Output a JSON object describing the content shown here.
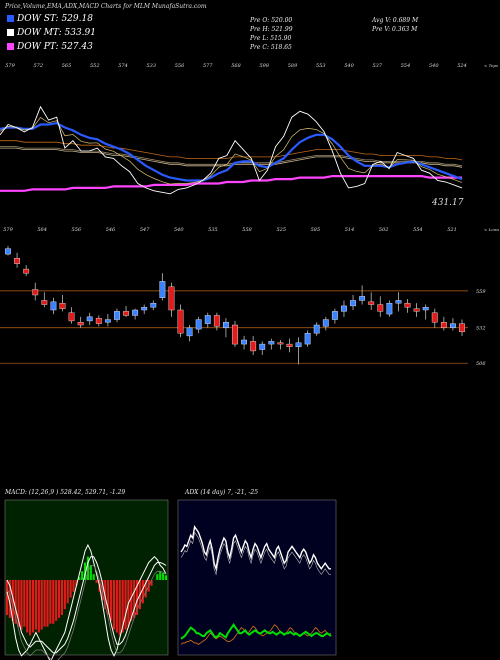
{
  "page_title": "Price,Volume,EMA,ADX,MACD Charts for MLM MunafaSutra.com",
  "legend": [
    {
      "label": "DOW ST: 529.18",
      "color": "#2a5bff"
    },
    {
      "label": "DOW MT: 533.91",
      "color": "#ffffff"
    },
    {
      "label": "DOW PT: 527.43",
      "color": "#ff44ff"
    }
  ],
  "stats": {
    "open": "Pre  O: 520.00",
    "high": "Pre  H: 521.99",
    "low": "Pre  L: 515.90",
    "close": "Pre  C: 518.65",
    "avg_vol": "Avg V: 0.689 M",
    "pre_vol": "Pre  V: 0.363 M"
  },
  "macd_header": "MACD: (12,26,9 ) 528.42, 529.71, -1.29",
  "adx_header": "ADX (14 day) 7, -21, -25",
  "colors": {
    "st": "#2a5bff",
    "mt": "#ffffff",
    "pt": "#ff44ff",
    "up": "#3b82ff",
    "down": "#e21b1b",
    "orange": "#c06a1a",
    "green": "#00e000"
  },
  "chart_data": [
    {
      "type": "line",
      "name": "ema-panel",
      "top_tick_labels": [
        "579",
        "572",
        "565",
        "552",
        "574",
        "533",
        "556",
        "577",
        "568",
        "598",
        "589",
        "553",
        "540",
        "537",
        "554",
        "540",
        "524"
      ],
      "side_label": "< Tops",
      "last_price_label": "431.17",
      "x_count": 58,
      "price": [
        556,
        563,
        561,
        558,
        561,
        575,
        566,
        568,
        547,
        552,
        545,
        545,
        547,
        541,
        540,
        535,
        531,
        523,
        520,
        518,
        517,
        516,
        519,
        520,
        522,
        525,
        530,
        540,
        542,
        552,
        546,
        540,
        525,
        532,
        548,
        555,
        568,
        572,
        570,
        565,
        558,
        545,
        530,
        520,
        521,
        523,
        536,
        538,
        533,
        544,
        542,
        540,
        532,
        530,
        525,
        524,
        522,
        520
      ],
      "ema_st": [
        560,
        561,
        561,
        560,
        560,
        563,
        563,
        564,
        561,
        559,
        556,
        554,
        553,
        550,
        548,
        546,
        543,
        539,
        535,
        532,
        529,
        527,
        526,
        525,
        525,
        525,
        527,
        530,
        532,
        537,
        538,
        538,
        535,
        534,
        537,
        540,
        546,
        551,
        554,
        556,
        556,
        553,
        548,
        542,
        538,
        535,
        535,
        535,
        534,
        536,
        537,
        538,
        536,
        534,
        532,
        530,
        528,
        526
      ],
      "ema_mt": [
        548,
        548,
        548,
        547,
        547,
        547,
        547,
        547,
        546,
        546,
        545,
        545,
        545,
        544,
        543,
        543,
        542,
        541,
        540,
        539,
        538,
        537,
        537,
        536,
        536,
        536,
        536,
        536,
        536,
        537,
        537,
        537,
        537,
        537,
        537,
        538,
        539,
        540,
        541,
        542,
        542,
        542,
        542,
        541,
        540,
        539,
        539,
        538,
        538,
        538,
        538,
        538,
        538,
        537,
        537,
        536,
        536,
        535
      ],
      "ema_pt": [
        518,
        518,
        518,
        518,
        519,
        519,
        519,
        519,
        519,
        520,
        520,
        520,
        520,
        520,
        521,
        521,
        521,
        521,
        521,
        522,
        522,
        522,
        522,
        522,
        523,
        523,
        523,
        523,
        524,
        524,
        524,
        525,
        525,
        525,
        526,
        526,
        526,
        527,
        527,
        527,
        527,
        528,
        528,
        528,
        528,
        528,
        528,
        528,
        528,
        528,
        528,
        528,
        528,
        527,
        527,
        527,
        527,
        527
      ],
      "ylim": [
        505,
        600
      ]
    },
    {
      "type": "bar",
      "name": "candle-panel",
      "top_tick_labels": [
        "579",
        "564",
        "556",
        "546",
        "547",
        "540",
        "535",
        "558",
        "525",
        "585",
        "514",
        "502",
        "554",
        "521"
      ],
      "side_label": "< Lows",
      "level_labels": [
        "559",
        "532",
        "506"
      ],
      "levels": [
        559,
        532,
        506
      ],
      "ylim": [
        490,
        600
      ],
      "candles": [
        [
          586,
          592,
          585,
          590
        ],
        [
          583,
          587,
          576,
          579
        ],
        [
          575,
          578,
          570,
          572
        ],
        [
          560,
          565,
          552,
          556
        ],
        [
          552,
          558,
          547,
          549
        ],
        [
          545,
          554,
          542,
          551
        ],
        [
          550,
          556,
          544,
          546
        ],
        [
          543,
          547,
          535,
          537
        ],
        [
          536,
          540,
          532,
          534
        ],
        [
          537,
          543,
          534,
          540
        ],
        [
          539,
          541,
          533,
          535
        ],
        [
          536,
          542,
          533,
          538
        ],
        [
          538,
          546,
          536,
          544
        ],
        [
          544,
          548,
          540,
          541
        ],
        [
          541,
          546,
          538,
          545
        ],
        [
          545,
          549,
          542,
          547
        ],
        [
          547,
          552,
          545,
          550
        ],
        [
          554,
          572,
          552,
          566
        ],
        [
          562,
          565,
          540,
          545
        ],
        [
          545,
          549,
          525,
          528
        ],
        [
          526,
          534,
          522,
          532
        ],
        [
          531,
          540,
          528,
          538
        ],
        [
          535,
          543,
          532,
          541
        ],
        [
          541,
          543,
          530,
          533
        ],
        [
          532,
          539,
          525,
          536
        ],
        [
          534,
          537,
          518,
          520
        ],
        [
          520,
          526,
          516,
          523
        ],
        [
          522,
          526,
          512,
          515
        ],
        [
          516,
          522,
          512,
          520
        ],
        [
          520,
          524,
          516,
          522
        ],
        [
          521,
          523,
          516,
          520
        ],
        [
          520,
          524,
          514,
          518
        ],
        [
          518,
          525,
          505,
          521
        ],
        [
          520,
          530,
          518,
          528
        ],
        [
          528,
          536,
          526,
          534
        ],
        [
          533,
          540,
          530,
          538
        ],
        [
          538,
          546,
          535,
          544
        ],
        [
          544,
          552,
          540,
          548
        ],
        [
          548,
          556,
          545,
          552
        ],
        [
          552,
          563,
          549,
          555
        ],
        [
          551,
          558,
          545,
          549
        ],
        [
          549,
          555,
          540,
          544
        ],
        [
          542,
          552,
          540,
          550
        ],
        [
          550,
          558,
          544,
          552
        ],
        [
          550,
          553,
          543,
          547
        ],
        [
          546,
          550,
          540,
          544
        ],
        [
          545,
          549,
          538,
          547
        ],
        [
          543,
          546,
          532,
          536
        ],
        [
          536,
          540,
          530,
          532
        ],
        [
          532,
          539,
          530,
          535
        ],
        [
          535,
          538,
          526,
          529
        ]
      ]
    },
    {
      "type": "line",
      "name": "macd-panel",
      "ylim": [
        -12,
        12
      ],
      "x_count": 56,
      "histogram": [
        -6,
        -6.5,
        -7,
        -7.5,
        -8,
        -8.5,
        -8,
        -9,
        -9.5,
        -9,
        -8.5,
        -9,
        -8.5,
        -8,
        -8,
        -7.5,
        -7.5,
        -7,
        -6.5,
        -6,
        -5,
        -4,
        -3,
        -2,
        -1,
        0.5,
        1.5,
        3,
        4,
        2.5,
        1,
        -0.5,
        -2,
        -3.5,
        -5,
        -6,
        -7,
        -8.5,
        -9,
        -9.5,
        -9,
        -8.5,
        -8,
        -7,
        -6.5,
        -6,
        -5,
        -4,
        -3,
        -2,
        -1,
        0,
        1,
        1.5,
        1.2,
        0.8
      ],
      "macd": [
        -2,
        -4,
        -7,
        -10,
        -12,
        -13,
        -12.5,
        -12,
        -11,
        -10,
        -9,
        -10,
        -11,
        -12,
        -13,
        -14,
        -13,
        -12,
        -11,
        -10,
        -9,
        -7,
        -5,
        -3,
        -1,
        1,
        3,
        5,
        6,
        5,
        3,
        1,
        -1,
        -4,
        -7,
        -10,
        -12,
        -13,
        -12,
        -10,
        -8,
        -6,
        -4,
        -3,
        -2,
        -1,
        0,
        1,
        2,
        3,
        3.5,
        4,
        3.5,
        2.5,
        2,
        1
      ],
      "signal": [
        0,
        -1,
        -3,
        -5,
        -7,
        -9,
        -10,
        -11,
        -11.5,
        -11,
        -10.5,
        -10.5,
        -10.5,
        -11,
        -11.5,
        -12,
        -12.5,
        -12.5,
        -12,
        -11.5,
        -11,
        -10,
        -8.5,
        -7,
        -5,
        -3,
        -1,
        1,
        3,
        4,
        4,
        3,
        1.5,
        -0.5,
        -3,
        -5,
        -7.5,
        -9.5,
        -11,
        -11,
        -10.5,
        -9.5,
        -8,
        -6.5,
        -5,
        -3.5,
        -2.5,
        -1.5,
        -0.5,
        0.5,
        1.5,
        2.5,
        3,
        3,
        2.8,
        2.5
      ]
    },
    {
      "type": "line",
      "name": "adx-panel",
      "ylim": [
        0,
        100
      ],
      "x_count": 78,
      "plus_di": [
        70,
        72,
        75,
        74,
        78,
        82,
        80,
        88,
        86,
        84,
        80,
        76,
        70,
        68,
        74,
        78,
        72,
        62,
        58,
        66,
        72,
        76,
        80,
        78,
        70,
        66,
        72,
        80,
        82,
        78,
        74,
        70,
        74,
        78,
        76,
        70,
        66,
        72,
        76,
        74,
        70,
        66,
        70,
        74,
        76,
        72,
        70,
        68,
        66,
        72,
        74,
        70,
        66,
        62,
        64,
        70,
        72,
        74,
        72,
        70,
        68,
        66,
        70,
        72,
        70,
        66,
        62,
        64,
        68,
        66,
        62,
        60,
        58,
        60,
        62,
        60,
        58,
        58
      ],
      "minus_di": [
        8,
        9,
        10,
        12,
        14,
        16,
        15,
        14,
        12,
        12,
        11,
        10,
        10,
        12,
        13,
        14,
        12,
        10,
        9,
        10,
        12,
        11,
        10,
        9,
        12,
        14,
        16,
        18,
        16,
        14,
        12,
        12,
        13,
        14,
        12,
        11,
        12,
        13,
        14,
        13,
        12,
        12,
        13,
        14,
        13,
        12,
        12,
        13,
        12,
        11,
        12,
        13,
        12,
        11,
        12,
        12,
        13,
        12,
        11,
        12,
        11,
        10,
        11,
        12,
        13,
        12,
        11,
        10,
        11,
        12,
        12,
        11,
        10,
        10,
        11,
        12,
        11,
        10
      ],
      "adx": [
        4,
        5,
        5,
        6,
        6,
        7,
        6,
        5,
        5,
        4,
        5,
        6,
        7,
        8,
        10,
        12,
        11,
        9,
        8,
        9,
        10,
        9,
        8,
        7,
        6,
        6,
        7,
        8,
        10,
        12,
        14,
        16,
        15,
        13,
        12,
        13,
        15,
        17,
        16,
        14,
        12,
        11,
        10,
        11,
        12,
        13,
        14,
        16,
        18,
        17,
        15,
        13,
        12,
        11,
        12,
        14,
        16,
        15,
        13,
        12,
        11,
        10,
        11,
        12,
        11,
        10,
        11,
        12,
        14,
        16,
        15,
        13,
        12,
        13,
        14,
        12,
        11,
        12
      ]
    }
  ]
}
